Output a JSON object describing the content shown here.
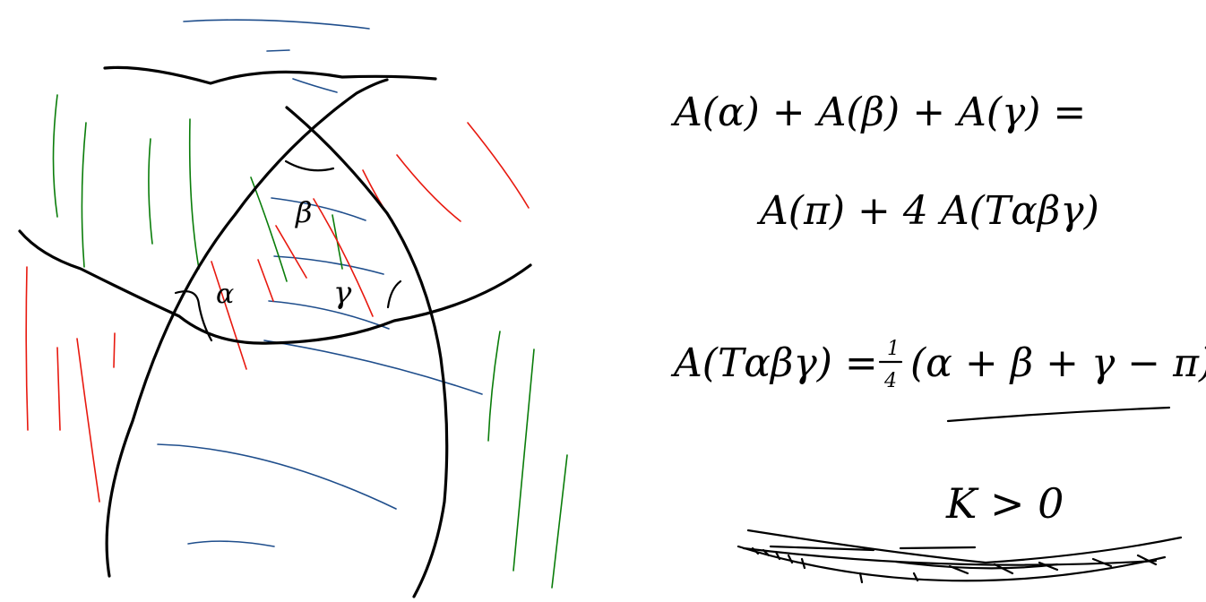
{
  "diagram": {
    "angle_labels": {
      "alpha": "α",
      "beta": "β",
      "gamma": "γ"
    },
    "equations": {
      "line1": "A(α) + A(β) + A(γ) =",
      "line2": "A(π) + 4 A(Tαβγ)",
      "line3_lhs": "A(Tαβγ) =",
      "line3_coef_num": "1",
      "line3_coef_den": "4",
      "line3_rhs": "(α + β + γ − π)",
      "curvature": "K > 0"
    },
    "colors": {
      "ink": "#000000",
      "hatch_red": "#e8190f",
      "hatch_green": "#0a7d0a",
      "hatch_blue": "#1f4e8c"
    }
  }
}
